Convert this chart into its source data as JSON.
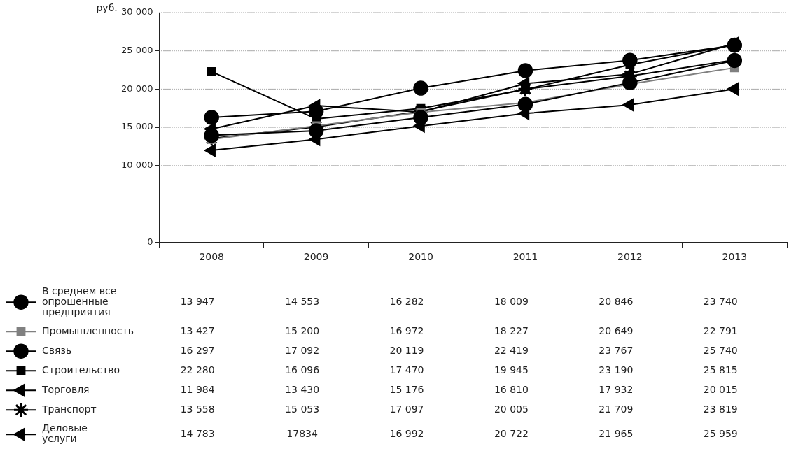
{
  "chart_data": {
    "type": "line",
    "ylabel": "руб.",
    "categories": [
      "2008",
      "2009",
      "2010",
      "2011",
      "2012",
      "2013"
    ],
    "ylim": [
      0,
      30000
    ],
    "yticks": [
      {
        "value": 0,
        "label": "0"
      },
      {
        "value": 10000,
        "label": "10 000"
      },
      {
        "value": 15000,
        "label": "15 000"
      },
      {
        "value": 20000,
        "label": "20 000"
      },
      {
        "value": 25000,
        "label": "25 000"
      },
      {
        "value": 30000,
        "label": "30 000"
      }
    ],
    "grid": "y",
    "legend": "bottom",
    "series": [
      {
        "name": "В среднем все опрошенные предприятия",
        "color": "#000000",
        "marker": "circle",
        "values": [
          13947,
          14553,
          16282,
          18009,
          20846,
          23740
        ],
        "value_labels": [
          "13 947",
          "14 553",
          "16 282",
          "18 009",
          "20 846",
          "23 740"
        ]
      },
      {
        "name": "Промышленность",
        "color": "#808080",
        "marker": "square",
        "values": [
          13427,
          15200,
          16972,
          18227,
          20649,
          22791
        ],
        "value_labels": [
          "13 427",
          "15 200",
          "16 972",
          "18 227",
          "20 649",
          "22 791"
        ]
      },
      {
        "name": "Связь",
        "color": "#000000",
        "marker": "circle",
        "values": [
          16297,
          17092,
          20119,
          22419,
          23767,
          25740
        ],
        "value_labels": [
          "16 297",
          "17 092",
          "20 119",
          "22 419",
          "23 767",
          "25 740"
        ]
      },
      {
        "name": "Строительство",
        "color": "#000000",
        "marker": "square",
        "values": [
          22280,
          16096,
          17470,
          19945,
          23190,
          25815
        ],
        "value_labels": [
          "22 280",
          "16 096",
          "17 470",
          "19 945",
          "23 190",
          "25 815"
        ]
      },
      {
        "name": "Торговля",
        "color": "#000000",
        "marker": "triangle",
        "values": [
          11984,
          13430,
          15176,
          16810,
          17932,
          20015
        ],
        "value_labels": [
          "11 984",
          "13 430",
          "15 176",
          "16 810",
          "17 932",
          "20 015"
        ]
      },
      {
        "name": "Транспорт",
        "color": "#000000",
        "marker": "cross",
        "values": [
          13558,
          15053,
          17097,
          20005,
          21709,
          23819
        ],
        "value_labels": [
          "13 558",
          "15 053",
          "17 097",
          "20 005",
          "21 709",
          "23 819"
        ]
      },
      {
        "name": "Деловые услуги",
        "color": "#000000",
        "marker": "triangle",
        "values": [
          14783,
          17834,
          16992,
          20722,
          21965,
          25959
        ],
        "value_labels": [
          "14 783",
          "17834",
          "16 992",
          "20 722",
          "21 965",
          "25 959"
        ]
      }
    ]
  }
}
